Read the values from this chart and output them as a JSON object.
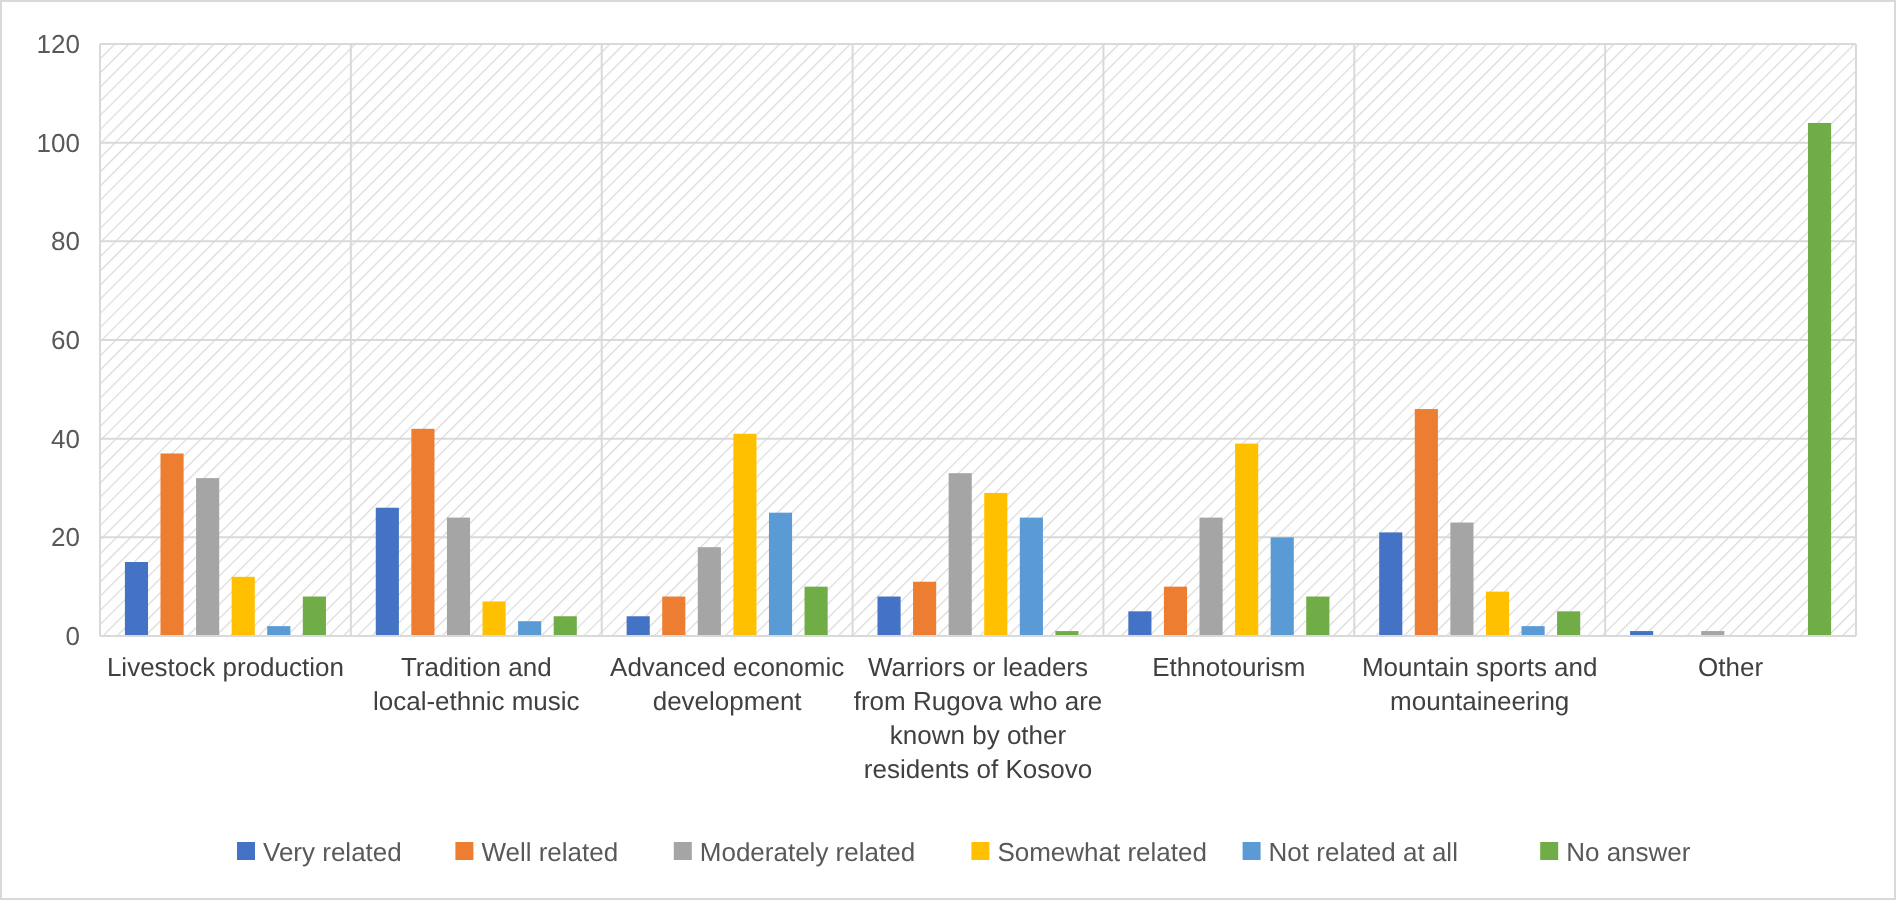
{
  "chart_data": {
    "type": "bar",
    "categories": [
      "Livestock production",
      "Tradition and local-ethnic music",
      "Advanced economic development",
      "Warriors or leaders from Rugova who are known by other residents of Kosovo",
      "Ethnotourism",
      "Mountain sports and mountaineering",
      "Other"
    ],
    "series": [
      {
        "name": "Very related",
        "color": "#4472c4",
        "values": [
          15,
          26,
          4,
          8,
          5,
          21,
          1
        ]
      },
      {
        "name": "Well related",
        "color": "#ed7d31",
        "values": [
          37,
          42,
          8,
          11,
          10,
          46,
          0
        ]
      },
      {
        "name": "Moderately related",
        "color": "#a5a5a5",
        "values": [
          32,
          24,
          18,
          33,
          24,
          23,
          1
        ]
      },
      {
        "name": "Somewhat related",
        "color": "#ffc000",
        "values": [
          12,
          7,
          41,
          29,
          39,
          9,
          0
        ]
      },
      {
        "name": "Not related at all",
        "color": "#5b9bd5",
        "values": [
          2,
          3,
          25,
          24,
          20,
          2,
          0
        ]
      },
      {
        "name": "No answer",
        "color": "#70ad47",
        "values": [
          8,
          4,
          10,
          1,
          8,
          5,
          104
        ]
      }
    ],
    "ylim": [
      0,
      120
    ],
    "yticks": [
      0,
      20,
      40,
      60,
      80,
      100,
      120
    ],
    "grid": true,
    "legend": "bottom"
  }
}
